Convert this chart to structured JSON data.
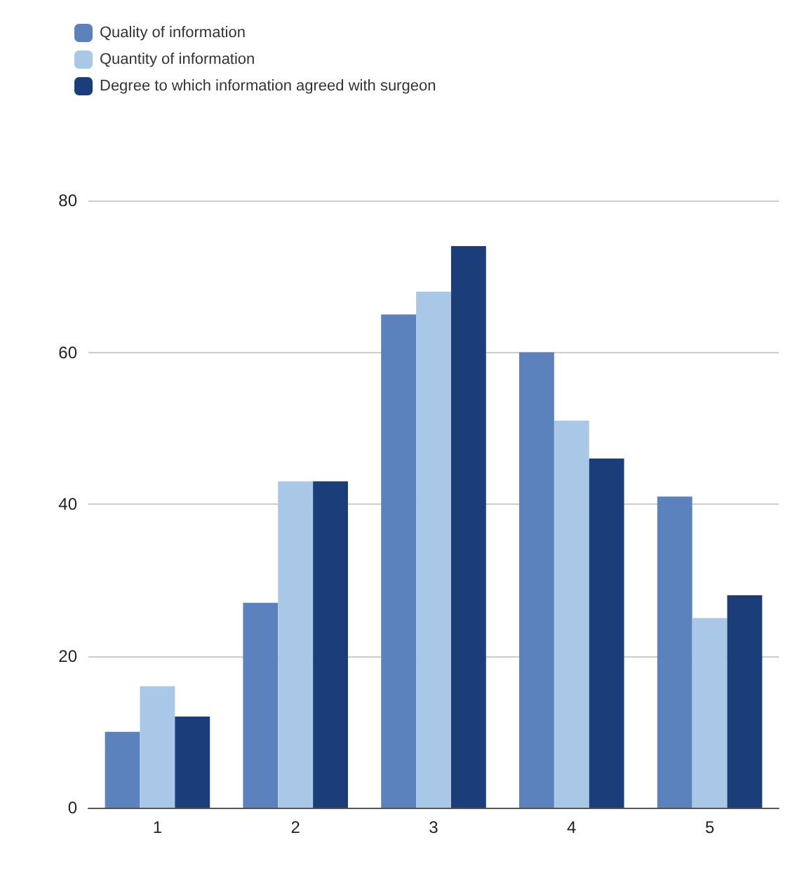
{
  "chart_data": {
    "type": "bar",
    "categories": [
      "1",
      "2",
      "3",
      "4",
      "5"
    ],
    "series": [
      {
        "name": "Quality of information",
        "color": "#5b82bd",
        "values": [
          10,
          27,
          65,
          60,
          41
        ]
      },
      {
        "name": "Quantity of information",
        "color": "#a9c7e7",
        "values": [
          16,
          43,
          68,
          51,
          25
        ]
      },
      {
        "name": "Degree to which information agreed with surgeon",
        "color": "#1b3e7b",
        "values": [
          12,
          43,
          74,
          46,
          28
        ]
      }
    ],
    "ylim": [
      0,
      80
    ],
    "yticks": [
      0,
      20,
      40,
      60,
      80
    ],
    "grid": "y",
    "legend": "top left"
  }
}
